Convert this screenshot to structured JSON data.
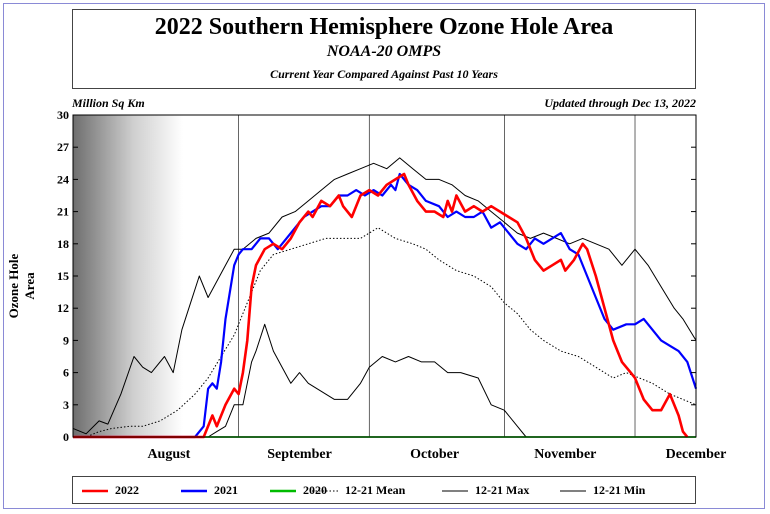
{
  "header": {
    "title": "2022 Southern Hemisphere Ozone Hole Area",
    "subtitle": "NOAA-20 OMPS",
    "caption": "Current Year Compared Against Past 10 Years"
  },
  "units_label": "Million Sq Km",
  "updated_label": "Updated through Dec 13, 2022",
  "legend": {
    "items": [
      {
        "label": "2022",
        "color": "#ff0000",
        "style": "solid"
      },
      {
        "label": "2021",
        "color": "#0000ff",
        "style": "solid"
      },
      {
        "label": "2020",
        "color": "#00bb00",
        "style": "solid"
      },
      {
        "label": "12-21 Mean",
        "color": "#000000",
        "style": "dotted"
      },
      {
        "label": "12-21 Max",
        "color": "#000000",
        "style": "solid"
      },
      {
        "label": "12-21 Min",
        "color": "#000000",
        "style": "solid"
      }
    ]
  },
  "chart_data": {
    "type": "line",
    "ylabel": "Ozone Hole Area",
    "ylim": [
      0,
      30
    ],
    "yticks": [
      0,
      3,
      6,
      9,
      12,
      15,
      18,
      21,
      24,
      27,
      30
    ],
    "xlim": [
      "2022-07-25",
      "2022-12-15"
    ],
    "month_labels": [
      {
        "label": "August",
        "date": "2022-08-16"
      },
      {
        "label": "September",
        "date": "2022-09-15"
      },
      {
        "label": "October",
        "date": "2022-10-16"
      },
      {
        "label": "November",
        "date": "2022-11-15"
      },
      {
        "label": "December",
        "date": "2022-12-15"
      }
    ],
    "month_dividers": [
      "2022-09-01",
      "2022-10-01",
      "2022-11-01",
      "2022-12-01"
    ],
    "series": [
      {
        "name": "12-21 Max",
        "color": "#000000",
        "dash": "",
        "points": [
          [
            "2022-07-25",
            0.8
          ],
          [
            "2022-07-28",
            0.3
          ],
          [
            "2022-07-31",
            1.5
          ],
          [
            "2022-08-02",
            1.2
          ],
          [
            "2022-08-05",
            4
          ],
          [
            "2022-08-08",
            7.5
          ],
          [
            "2022-08-10",
            6.5
          ],
          [
            "2022-08-12",
            6
          ],
          [
            "2022-08-15",
            7.5
          ],
          [
            "2022-08-17",
            6
          ],
          [
            "2022-08-19",
            10
          ],
          [
            "2022-08-21",
            12.5
          ],
          [
            "2022-08-23",
            15
          ],
          [
            "2022-08-25",
            13
          ],
          [
            "2022-08-27",
            14.5
          ],
          [
            "2022-08-29",
            16
          ],
          [
            "2022-08-31",
            17.5
          ],
          [
            "2022-09-02",
            17.5
          ],
          [
            "2022-09-05",
            18.5
          ],
          [
            "2022-09-08",
            19
          ],
          [
            "2022-09-11",
            20.5
          ],
          [
            "2022-09-14",
            21
          ],
          [
            "2022-09-17",
            22
          ],
          [
            "2022-09-20",
            23
          ],
          [
            "2022-09-23",
            24
          ],
          [
            "2022-09-26",
            24.5
          ],
          [
            "2022-09-29",
            25
          ],
          [
            "2022-10-02",
            25.5
          ],
          [
            "2022-10-05",
            25
          ],
          [
            "2022-10-08",
            26
          ],
          [
            "2022-10-11",
            25
          ],
          [
            "2022-10-14",
            24
          ],
          [
            "2022-10-17",
            24
          ],
          [
            "2022-10-20",
            23.5
          ],
          [
            "2022-10-23",
            22.5
          ],
          [
            "2022-10-26",
            22
          ],
          [
            "2022-10-29",
            21
          ],
          [
            "2022-11-01",
            20
          ],
          [
            "2022-11-04",
            19
          ],
          [
            "2022-11-07",
            18.5
          ],
          [
            "2022-11-10",
            19
          ],
          [
            "2022-11-13",
            18.5
          ],
          [
            "2022-11-16",
            18
          ],
          [
            "2022-11-19",
            18.5
          ],
          [
            "2022-11-22",
            18
          ],
          [
            "2022-11-25",
            17.5
          ],
          [
            "2022-11-28",
            16
          ],
          [
            "2022-12-01",
            17.5
          ],
          [
            "2022-12-04",
            16
          ],
          [
            "2022-12-07",
            14
          ],
          [
            "2022-12-10",
            12
          ],
          [
            "2022-12-12",
            11
          ],
          [
            "2022-12-15",
            9
          ]
        ]
      },
      {
        "name": "12-21 Min",
        "color": "#000000",
        "dash": "",
        "points": [
          [
            "2022-07-25",
            0
          ],
          [
            "2022-08-20",
            0
          ],
          [
            "2022-08-25",
            0
          ],
          [
            "2022-08-27",
            0.5
          ],
          [
            "2022-08-29",
            1
          ],
          [
            "2022-08-31",
            3
          ],
          [
            "2022-09-02",
            3
          ],
          [
            "2022-09-04",
            7
          ],
          [
            "2022-09-05",
            8
          ],
          [
            "2022-09-07",
            10.5
          ],
          [
            "2022-09-09",
            8
          ],
          [
            "2022-09-11",
            6.5
          ],
          [
            "2022-09-13",
            5
          ],
          [
            "2022-09-15",
            6
          ],
          [
            "2022-09-17",
            5
          ],
          [
            "2022-09-19",
            4.5
          ],
          [
            "2022-09-21",
            4
          ],
          [
            "2022-09-23",
            3.5
          ],
          [
            "2022-09-26",
            3.5
          ],
          [
            "2022-09-29",
            5
          ],
          [
            "2022-10-01",
            6.5
          ],
          [
            "2022-10-04",
            7.5
          ],
          [
            "2022-10-07",
            7
          ],
          [
            "2022-10-10",
            7.5
          ],
          [
            "2022-10-13",
            7
          ],
          [
            "2022-10-16",
            7
          ],
          [
            "2022-10-19",
            6
          ],
          [
            "2022-10-22",
            6
          ],
          [
            "2022-10-26",
            5.5
          ],
          [
            "2022-10-29",
            3
          ],
          [
            "2022-11-01",
            2.5
          ],
          [
            "2022-11-04",
            1
          ],
          [
            "2022-11-06",
            0
          ],
          [
            "2022-12-15",
            0
          ]
        ]
      },
      {
        "name": "12-21 Mean",
        "color": "#000000",
        "dash": "1.5,2",
        "points": [
          [
            "2022-07-25",
            0
          ],
          [
            "2022-07-28",
            0
          ],
          [
            "2022-07-31",
            0.5
          ],
          [
            "2022-08-03",
            0.8
          ],
          [
            "2022-08-07",
            1
          ],
          [
            "2022-08-10",
            1
          ],
          [
            "2022-08-14",
            1.5
          ],
          [
            "2022-08-18",
            2.5
          ],
          [
            "2022-08-22",
            4
          ],
          [
            "2022-08-25",
            5.5
          ],
          [
            "2022-08-28",
            7.5
          ],
          [
            "2022-08-31",
            9.5
          ],
          [
            "2022-09-03",
            12.5
          ],
          [
            "2022-09-06",
            15.5
          ],
          [
            "2022-09-09",
            17
          ],
          [
            "2022-09-13",
            17.5
          ],
          [
            "2022-09-17",
            18
          ],
          [
            "2022-09-21",
            18.5
          ],
          [
            "2022-09-25",
            18.5
          ],
          [
            "2022-09-29",
            18.5
          ],
          [
            "2022-10-03",
            19.5
          ],
          [
            "2022-10-07",
            18.5
          ],
          [
            "2022-10-11",
            18
          ],
          [
            "2022-10-14",
            17.5
          ],
          [
            "2022-10-17",
            16.5
          ],
          [
            "2022-10-21",
            15.5
          ],
          [
            "2022-10-25",
            15
          ],
          [
            "2022-10-29",
            14
          ],
          [
            "2022-11-01",
            12.5
          ],
          [
            "2022-11-04",
            11.5
          ],
          [
            "2022-11-07",
            10
          ],
          [
            "2022-11-10",
            9
          ],
          [
            "2022-11-14",
            8
          ],
          [
            "2022-11-18",
            7.5
          ],
          [
            "2022-11-22",
            6.5
          ],
          [
            "2022-11-26",
            5.5
          ],
          [
            "2022-11-29",
            6
          ],
          [
            "2022-12-02",
            5.5
          ],
          [
            "2022-12-05",
            5
          ],
          [
            "2022-12-09",
            4
          ],
          [
            "2022-12-12",
            3.5
          ],
          [
            "2022-12-15",
            3
          ]
        ]
      },
      {
        "name": "2020",
        "color": "#00bb00",
        "dash": "",
        "points": [
          [
            "2022-07-25",
            0
          ],
          [
            "2022-12-15",
            0
          ]
        ]
      },
      {
        "name": "2021",
        "color": "#0000ff",
        "dash": "",
        "points": [
          [
            "2022-07-25",
            0
          ],
          [
            "2022-08-22",
            0
          ],
          [
            "2022-08-24",
            1
          ],
          [
            "2022-08-25",
            4.5
          ],
          [
            "2022-08-26",
            5
          ],
          [
            "2022-08-27",
            4.5
          ],
          [
            "2022-08-28",
            7
          ],
          [
            "2022-08-29",
            11
          ],
          [
            "2022-08-31",
            16
          ],
          [
            "2022-09-01",
            17
          ],
          [
            "2022-09-02",
            17.5
          ],
          [
            "2022-09-04",
            17.5
          ],
          [
            "2022-09-06",
            18.5
          ],
          [
            "2022-09-08",
            18.5
          ],
          [
            "2022-09-10",
            17.5
          ],
          [
            "2022-09-12",
            18.5
          ],
          [
            "2022-09-14",
            19.5
          ],
          [
            "2022-09-16",
            20.5
          ],
          [
            "2022-09-18",
            21
          ],
          [
            "2022-09-20",
            21.5
          ],
          [
            "2022-09-22",
            21.5
          ],
          [
            "2022-09-24",
            22.5
          ],
          [
            "2022-09-26",
            22.5
          ],
          [
            "2022-09-28",
            23
          ],
          [
            "2022-09-30",
            22.5
          ],
          [
            "2022-10-02",
            23
          ],
          [
            "2022-10-04",
            22.5
          ],
          [
            "2022-10-06",
            23.5
          ],
          [
            "2022-10-07",
            23
          ],
          [
            "2022-10-08",
            24.5
          ],
          [
            "2022-10-10",
            23.5
          ],
          [
            "2022-10-12",
            23
          ],
          [
            "2022-10-14",
            22
          ],
          [
            "2022-10-17",
            21.5
          ],
          [
            "2022-10-19",
            20.5
          ],
          [
            "2022-10-21",
            21
          ],
          [
            "2022-10-23",
            20.5
          ],
          [
            "2022-10-25",
            20.5
          ],
          [
            "2022-10-27",
            21
          ],
          [
            "2022-10-29",
            19.5
          ],
          [
            "2022-10-31",
            20
          ],
          [
            "2022-11-02",
            19
          ],
          [
            "2022-11-04",
            18
          ],
          [
            "2022-11-06",
            17.5
          ],
          [
            "2022-11-08",
            18.5
          ],
          [
            "2022-11-10",
            18
          ],
          [
            "2022-11-12",
            18.5
          ],
          [
            "2022-11-14",
            19
          ],
          [
            "2022-11-16",
            17.5
          ],
          [
            "2022-11-18",
            17
          ],
          [
            "2022-11-20",
            15
          ],
          [
            "2022-11-22",
            13
          ],
          [
            "2022-11-24",
            11
          ],
          [
            "2022-11-26",
            10
          ],
          [
            "2022-11-29",
            10.5
          ],
          [
            "2022-12-01",
            10.5
          ],
          [
            "2022-12-03",
            11
          ],
          [
            "2022-12-05",
            10
          ],
          [
            "2022-12-07",
            9
          ],
          [
            "2022-12-09",
            8.5
          ],
          [
            "2022-12-11",
            8
          ],
          [
            "2022-12-13",
            7
          ],
          [
            "2022-12-15",
            4.5
          ]
        ]
      },
      {
        "name": "2022",
        "color": "#ff0000",
        "dash": "",
        "points": [
          [
            "2022-07-25",
            0
          ],
          [
            "2022-08-24",
            0
          ],
          [
            "2022-08-26",
            2
          ],
          [
            "2022-08-27",
            1
          ],
          [
            "2022-08-29",
            3
          ],
          [
            "2022-08-31",
            4.5
          ],
          [
            "2022-09-01",
            4
          ],
          [
            "2022-09-02",
            6
          ],
          [
            "2022-09-03",
            9
          ],
          [
            "2022-09-04",
            14
          ],
          [
            "2022-09-05",
            16
          ],
          [
            "2022-09-07",
            17.5
          ],
          [
            "2022-09-09",
            18
          ],
          [
            "2022-09-11",
            17.5
          ],
          [
            "2022-09-13",
            18.5
          ],
          [
            "2022-09-15",
            20
          ],
          [
            "2022-09-17",
            21
          ],
          [
            "2022-09-18",
            20.5
          ],
          [
            "2022-09-20",
            22
          ],
          [
            "2022-09-22",
            21.5
          ],
          [
            "2022-09-24",
            22.5
          ],
          [
            "2022-09-25",
            21.5
          ],
          [
            "2022-09-27",
            20.5
          ],
          [
            "2022-09-29",
            22.5
          ],
          [
            "2022-10-01",
            23
          ],
          [
            "2022-10-03",
            22.5
          ],
          [
            "2022-10-05",
            23.5
          ],
          [
            "2022-10-07",
            24
          ],
          [
            "2022-10-09",
            24.5
          ],
          [
            "2022-10-10",
            23.5
          ],
          [
            "2022-10-12",
            22
          ],
          [
            "2022-10-14",
            21
          ],
          [
            "2022-10-16",
            21
          ],
          [
            "2022-10-18",
            20.5
          ],
          [
            "2022-10-19",
            22
          ],
          [
            "2022-10-20",
            21
          ],
          [
            "2022-10-21",
            22.5
          ],
          [
            "2022-10-23",
            21
          ],
          [
            "2022-10-25",
            21.5
          ],
          [
            "2022-10-27",
            21
          ],
          [
            "2022-10-29",
            21.5
          ],
          [
            "2022-10-31",
            21
          ],
          [
            "2022-11-02",
            20.5
          ],
          [
            "2022-11-04",
            20
          ],
          [
            "2022-11-06",
            18.5
          ],
          [
            "2022-11-08",
            16.5
          ],
          [
            "2022-11-10",
            15.5
          ],
          [
            "2022-11-12",
            16
          ],
          [
            "2022-11-14",
            16.5
          ],
          [
            "2022-11-15",
            15.5
          ],
          [
            "2022-11-17",
            16.5
          ],
          [
            "2022-11-19",
            18
          ],
          [
            "2022-11-20",
            17.5
          ],
          [
            "2022-11-22",
            15
          ],
          [
            "2022-11-24",
            12
          ],
          [
            "2022-11-26",
            9
          ],
          [
            "2022-11-28",
            7
          ],
          [
            "2022-11-30",
            6
          ],
          [
            "2022-12-01",
            5.5
          ],
          [
            "2022-12-03",
            3.5
          ],
          [
            "2022-12-05",
            2.5
          ],
          [
            "2022-12-07",
            2.5
          ],
          [
            "2022-12-09",
            4
          ],
          [
            "2022-12-11",
            2
          ],
          [
            "2022-12-12",
            0.5
          ],
          [
            "2022-12-13",
            0
          ]
        ]
      }
    ]
  }
}
